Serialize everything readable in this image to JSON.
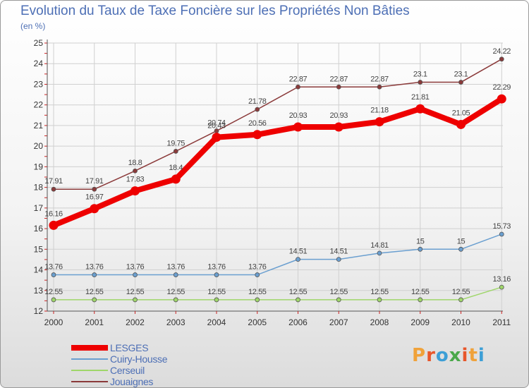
{
  "header": {
    "title": "Evolution du Taux de Taxe Foncière sur les Propriétés Non Bâties",
    "subtitle": "(en %)"
  },
  "brand": {
    "logo_text": "Proxiti",
    "letter_colors": [
      "#f0a23a",
      "#e8562b",
      "#3d9fd6",
      "#4aa84a",
      "#e8562b",
      "#f0a23a",
      "#3d9fd6"
    ]
  },
  "colors": {
    "text": "#4d6fb5",
    "grid": "#d0d0d0",
    "axis": "#555555",
    "tick_red": "#cc2222"
  },
  "chart_data": {
    "type": "line",
    "title": "Evolution du Taux de Taxe Foncière sur les Propriétés Non Bâties",
    "ylabel": "(en %)",
    "xlabel": "",
    "x": [
      "2000",
      "2001",
      "2002",
      "2003",
      "2004",
      "2005",
      "2006",
      "2007",
      "2008",
      "2009",
      "2010",
      "2011"
    ],
    "ylim": [
      12,
      25
    ],
    "yticks": [
      12,
      13,
      14,
      15,
      16,
      17,
      18,
      19,
      20,
      21,
      22,
      23,
      24,
      25
    ],
    "grid": true,
    "legend_position": "bottom-left",
    "series": [
      {
        "name": "LESGES",
        "color": "#ee0000",
        "values": [
          16.16,
          16.97,
          17.83,
          18.4,
          20.43,
          20.56,
          20.93,
          20.93,
          21.18,
          21.81,
          21.05,
          22.29
        ],
        "labels": [
          "16.16",
          "16.97",
          "17.83",
          "18.4",
          "20.43",
          "20.56",
          "20.93",
          "20.93",
          "21.18",
          "21.81",
          "21.05",
          "22.29"
        ]
      },
      {
        "name": "Cuiry-Housse",
        "color": "#6a9fd0",
        "values": [
          13.76,
          13.76,
          13.76,
          13.76,
          13.76,
          13.76,
          14.51,
          14.51,
          14.81,
          15,
          15,
          15.73
        ],
        "labels": [
          "13.76",
          "13.76",
          "13.76",
          "13.76",
          "13.76",
          "13.76",
          "14.51",
          "14.51",
          "14.81",
          "15",
          "15",
          "15.73"
        ]
      },
      {
        "name": "Cerseuil",
        "color": "#9fd66a",
        "values": [
          12.55,
          12.55,
          12.55,
          12.55,
          12.55,
          12.55,
          12.55,
          12.55,
          12.55,
          12.55,
          12.55,
          13.16
        ],
        "labels": [
          "12.55",
          "12.55",
          "12.55",
          "12.55",
          "12.55",
          "12.55",
          "12.55",
          "12.55",
          "12.55",
          "12.55",
          "12.55",
          "13.16"
        ]
      },
      {
        "name": "Jouaignes",
        "color": "#8b3a3a",
        "values": [
          17.91,
          17.91,
          18.8,
          19.75,
          20.74,
          21.78,
          22.87,
          22.87,
          22.87,
          23.1,
          23.1,
          24.22
        ],
        "labels": [
          "17.91",
          "17.91",
          "18.8",
          "19.75",
          "20.74",
          "21.78",
          "22.87",
          "22.87",
          "22.87",
          "23.1",
          "23.1",
          "24.22"
        ]
      }
    ]
  }
}
